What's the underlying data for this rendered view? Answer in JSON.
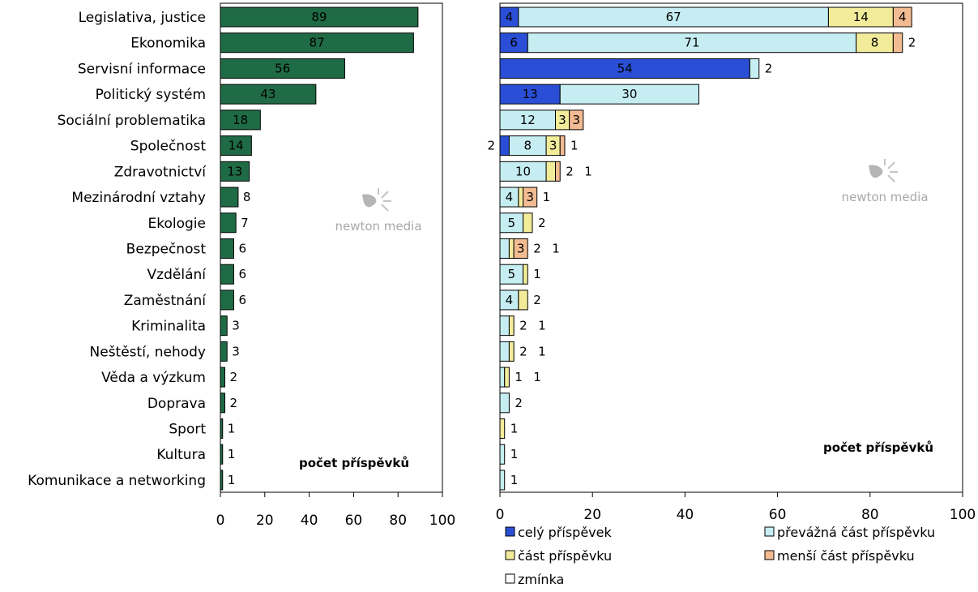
{
  "chart_data": [
    {
      "type": "bar",
      "orientation": "horizontal",
      "categories": [
        "Legislativa, justice",
        "Ekonomika",
        "Servisní informace",
        "Politický systém",
        "Sociální problematika",
        "Společnost",
        "Zdravotnictví",
        "Mezinárodní vztahy",
        "Ekologie",
        "Bezpečnost",
        "Vzdělání",
        "Zaměstnání",
        "Kriminalita",
        "Neštěstí, nehody",
        "Věda a výzkum",
        "Doprava",
        "Sport",
        "Kultura",
        "Komunikace a networking"
      ],
      "values": [
        89,
        87,
        56,
        43,
        18,
        14,
        13,
        8,
        7,
        6,
        6,
        6,
        3,
        3,
        2,
        2,
        1,
        1,
        1
      ],
      "xlim": [
        0,
        100
      ],
      "xticks": [
        0,
        20,
        40,
        60,
        80,
        100
      ],
      "annotation": "počet příspěvků",
      "bar_color": "#1f6b45",
      "grid": false
    },
    {
      "type": "bar",
      "orientation": "horizontal",
      "stacked": true,
      "categories": [
        "Legislativa, justice",
        "Ekonomika",
        "Servisní informace",
        "Politický systém",
        "Sociální problematika",
        "Společnost",
        "Zdravotnictví",
        "Mezinárodní vztahy",
        "Ekologie",
        "Bezpečnost",
        "Vzdělání",
        "Zaměstnání",
        "Kriminalita",
        "Neštěstí, nehody",
        "Věda a výzkum",
        "Doprava",
        "Sport",
        "Kultura",
        "Komunikace a networking"
      ],
      "series": [
        {
          "name": "celý příspěvek",
          "color": "#2a4fd6",
          "values": [
            4,
            6,
            54,
            13,
            0,
            2,
            0,
            0,
            0,
            0,
            0,
            0,
            0,
            0,
            0,
            0,
            0,
            0,
            0
          ]
        },
        {
          "name": "převážná část příspěvku",
          "color": "#c6eef2",
          "values": [
            67,
            71,
            2,
            30,
            12,
            8,
            10,
            4,
            5,
            2,
            5,
            4,
            2,
            2,
            1,
            2,
            0,
            1,
            1
          ]
        },
        {
          "name": "část příspěvku",
          "color": "#f2ec9a",
          "values": [
            14,
            8,
            0,
            0,
            3,
            3,
            2,
            1,
            2,
            1,
            1,
            2,
            1,
            1,
            1,
            0,
            1,
            0,
            0
          ]
        },
        {
          "name": "menší část příspěvku",
          "color": "#f2bb92",
          "values": [
            4,
            2,
            0,
            0,
            3,
            1,
            1,
            3,
            0,
            3,
            0,
            0,
            0,
            0,
            0,
            0,
            0,
            0,
            0
          ]
        },
        {
          "name": "zmínka",
          "color": "#ffffff",
          "values": [
            0,
            0,
            0,
            0,
            0,
            0,
            0,
            0,
            0,
            0,
            0,
            0,
            0,
            0,
            0,
            0,
            0,
            0,
            0
          ]
        }
      ],
      "xlim": [
        0,
        100
      ],
      "xticks": [
        0,
        20,
        40,
        60,
        80,
        100
      ],
      "annotation": "počet příspěvků",
      "legend_position": "bottom",
      "grid": false
    }
  ],
  "watermark": {
    "text": "newton media"
  }
}
